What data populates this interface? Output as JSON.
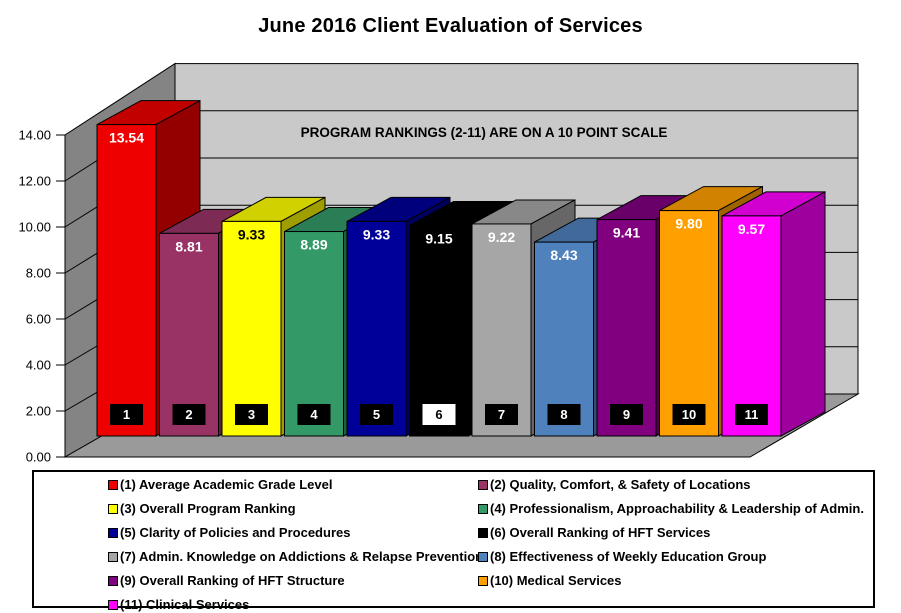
{
  "chart_data": {
    "type": "bar",
    "variant": "3d-bar",
    "title": "June 2016 Client Evaluation of Services",
    "wall_text": "PROGRAM RANKINGS (2-11) ARE ON A 10 POINT SCALE",
    "categories": [
      "1",
      "2",
      "3",
      "4",
      "5",
      "6",
      "7",
      "8",
      "9",
      "10",
      "11"
    ],
    "values": [
      13.54,
      8.81,
      9.33,
      8.89,
      9.33,
      9.15,
      9.22,
      8.43,
      9.41,
      9.8,
      9.57
    ],
    "value_labels": [
      "13.54",
      "8.81",
      "9.33",
      "8.89",
      "9.33",
      "9.15",
      "9.22",
      "8.43",
      "9.41",
      "9.80",
      "9.57"
    ],
    "colors": [
      "#EE0000",
      "#993366",
      "#FFFF00",
      "#339966",
      "#000099",
      "#000000",
      "#A6A6A6",
      "#4F81BD",
      "#800080",
      "#FF9F00",
      "#FF00FF"
    ],
    "value_label_colors": [
      "#FFFFFF",
      "#FFFFFF",
      "#000000",
      "#FFFFFF",
      "#FFFFFF",
      "#FFFFFF",
      "#FFFFFF",
      "#FFFFFF",
      "#FFFFFF",
      "#FFFFFF",
      "#FFFFFF"
    ],
    "badge_bg": [
      "#000000",
      "#000000",
      "#000000",
      "#000000",
      "#000000",
      "#FFFFFF",
      "#000000",
      "#000000",
      "#000000",
      "#000000",
      "#000000"
    ],
    "badge_fg": [
      "#FFFFFF",
      "#FFFFFF",
      "#FFFFFF",
      "#FFFFFF",
      "#FFFFFF",
      "#000000",
      "#FFFFFF",
      "#FFFFFF",
      "#FFFFFF",
      "#FFFFFF",
      "#FFFFFF"
    ],
    "xlabel": "",
    "ylabel": "",
    "ylim": [
      0,
      14
    ],
    "ytick_step": 2,
    "ytick_labels": [
      "0.00",
      "2.00",
      "4.00",
      "6.00",
      "8.00",
      "10.00",
      "12.00",
      "14.00"
    ],
    "grid": true,
    "legend_position": "bottom",
    "style": {
      "back_wall": "#C9C9C9",
      "side_wall": "#848484",
      "floor": "#9A9A9A",
      "gridline": "#000000",
      "axis_text": "#000000"
    },
    "legend": [
      {
        "label": "(1) Average Academic Grade Level",
        "color": "#EE0000"
      },
      {
        "label": "(2) Quality, Comfort, & Safety of Locations",
        "color": "#993366"
      },
      {
        "label": "(3) Overall Program Ranking",
        "color": "#FFFF00"
      },
      {
        "label": "(4) Professionalism, Approachability & Leadership of Admin.",
        "color": "#339966"
      },
      {
        "label": "(5) Clarity of Policies and Procedures",
        "color": "#000099"
      },
      {
        "label": "(6) Overall Ranking of HFT Services",
        "color": "#000000"
      },
      {
        "label": "(7) Admin. Knowledge on Addictions & Relapse Prevention",
        "color": "#A6A6A6"
      },
      {
        "label": "(8) Effectiveness of Weekly Education Group",
        "color": "#4F81BD"
      },
      {
        "label": "(9) Overall Ranking of HFT Structure",
        "color": "#800080"
      },
      {
        "label": "(10) Medical Services",
        "color": "#FF9F00"
      },
      {
        "label": "(11) Clinical Services",
        "color": "#FF00FF"
      }
    ]
  }
}
